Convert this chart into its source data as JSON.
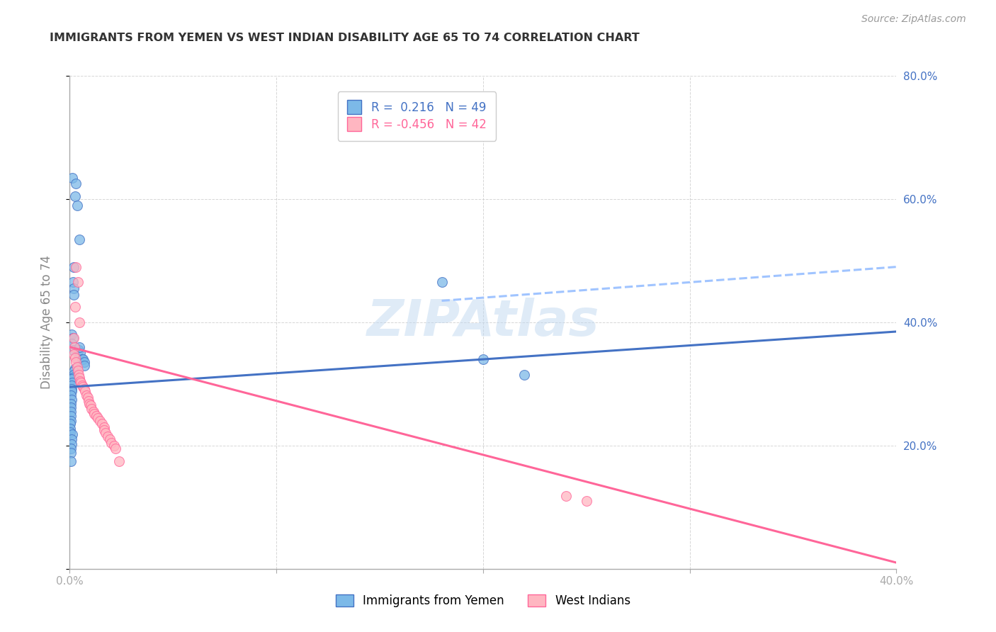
{
  "title_text": "IMMIGRANTS FROM YEMEN VS WEST INDIAN DISABILITY AGE 65 TO 74 CORRELATION CHART",
  "source_text": "Source: ZipAtlas.com",
  "ylabel": "Disability Age 65 to 74",
  "x_min": 0.0,
  "x_max": 0.4,
  "y_min": 0.0,
  "y_max": 0.8,
  "blue_r": "R =  0.216",
  "blue_n": "N = 49",
  "pink_r": "R = -0.456",
  "pink_n": "N = 42",
  "blue_marker_color": "#7CB9E8",
  "blue_edge_color": "#4472C4",
  "pink_marker_color": "#FFB6C1",
  "pink_edge_color": "#FF6699",
  "line_blue_color": "#4472C4",
  "line_pink_color": "#FF6699",
  "line_blue_dash_color": "#A0C4FF",
  "grid_color": "#CCCCCC",
  "axis_color": "#AAAAAA",
  "tick_label_color": "#4472C4",
  "title_color": "#333333",
  "source_color": "#999999",
  "ylabel_color": "#888888",
  "watermark_color": "#C0D8F0",
  "blue_points": [
    [
      0.0012,
      0.635
    ],
    [
      0.003,
      0.625
    ],
    [
      0.0025,
      0.605
    ],
    [
      0.0035,
      0.59
    ],
    [
      0.0045,
      0.535
    ],
    [
      0.002,
      0.49
    ],
    [
      0.0015,
      0.465
    ],
    [
      0.002,
      0.455
    ],
    [
      0.0018,
      0.445
    ],
    [
      0.001,
      0.38
    ],
    [
      0.0015,
      0.375
    ],
    [
      0.001,
      0.365
    ],
    [
      0.0015,
      0.355
    ],
    [
      0.0038,
      0.34
    ],
    [
      0.0043,
      0.355
    ],
    [
      0.005,
      0.35
    ],
    [
      0.0048,
      0.36
    ],
    [
      0.006,
      0.34
    ],
    [
      0.0065,
      0.34
    ],
    [
      0.007,
      0.335
    ],
    [
      0.0072,
      0.33
    ],
    [
      0.0025,
      0.325
    ],
    [
      0.002,
      0.32
    ],
    [
      0.0018,
      0.315
    ],
    [
      0.0015,
      0.31
    ],
    [
      0.001,
      0.308
    ],
    [
      0.0012,
      0.302
    ],
    [
      0.0008,
      0.298
    ],
    [
      0.001,
      0.292
    ],
    [
      0.0008,
      0.288
    ],
    [
      0.0005,
      0.282
    ],
    [
      0.0008,
      0.275
    ],
    [
      0.0006,
      0.268
    ],
    [
      0.0005,
      0.262
    ],
    [
      0.0004,
      0.255
    ],
    [
      0.0005,
      0.248
    ],
    [
      0.0004,
      0.24
    ],
    [
      0.0003,
      0.235
    ],
    [
      0.0003,
      0.228
    ],
    [
      0.0003,
      0.222
    ],
    [
      0.0012,
      0.218
    ],
    [
      0.001,
      0.21
    ],
    [
      0.0008,
      0.202
    ],
    [
      0.0006,
      0.195
    ],
    [
      0.0005,
      0.188
    ],
    [
      0.0006,
      0.175
    ],
    [
      0.18,
      0.465
    ],
    [
      0.2,
      0.34
    ],
    [
      0.22,
      0.315
    ]
  ],
  "pink_points": [
    [
      0.003,
      0.49
    ],
    [
      0.0038,
      0.465
    ],
    [
      0.0025,
      0.425
    ],
    [
      0.0045,
      0.4
    ],
    [
      0.002,
      0.375
    ],
    [
      0.0022,
      0.36
    ],
    [
      0.0018,
      0.348
    ],
    [
      0.0025,
      0.342
    ],
    [
      0.0028,
      0.335
    ],
    [
      0.0035,
      0.328
    ],
    [
      0.004,
      0.322
    ],
    [
      0.0042,
      0.315
    ],
    [
      0.0048,
      0.31
    ],
    [
      0.005,
      0.305
    ],
    [
      0.0055,
      0.302
    ],
    [
      0.006,
      0.298
    ],
    [
      0.0065,
      0.295
    ],
    [
      0.007,
      0.292
    ],
    [
      0.0075,
      0.288
    ],
    [
      0.008,
      0.282
    ],
    [
      0.0088,
      0.278
    ],
    [
      0.009,
      0.272
    ],
    [
      0.0095,
      0.268
    ],
    [
      0.01,
      0.265
    ],
    [
      0.0105,
      0.26
    ],
    [
      0.0115,
      0.255
    ],
    [
      0.012,
      0.252
    ],
    [
      0.013,
      0.248
    ],
    [
      0.0135,
      0.245
    ],
    [
      0.0145,
      0.24
    ],
    [
      0.0155,
      0.235
    ],
    [
      0.0165,
      0.23
    ],
    [
      0.0168,
      0.225
    ],
    [
      0.0175,
      0.22
    ],
    [
      0.0185,
      0.215
    ],
    [
      0.0195,
      0.21
    ],
    [
      0.02,
      0.205
    ],
    [
      0.0215,
      0.2
    ],
    [
      0.022,
      0.195
    ],
    [
      0.024,
      0.175
    ],
    [
      0.24,
      0.118
    ],
    [
      0.25,
      0.11
    ]
  ],
  "blue_line": [
    [
      0.0,
      0.295
    ],
    [
      0.4,
      0.385
    ]
  ],
  "blue_dash_line": [
    [
      0.18,
      0.435
    ],
    [
      0.4,
      0.49
    ]
  ],
  "pink_line": [
    [
      0.0,
      0.36
    ],
    [
      0.4,
      0.01
    ]
  ]
}
